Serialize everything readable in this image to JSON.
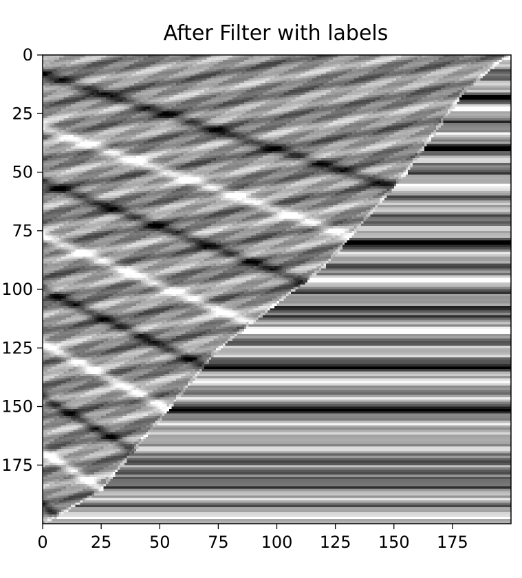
{
  "chart_data": {
    "type": "heatmap",
    "title": "After Filter with labels",
    "xlabel": "",
    "ylabel": "",
    "colormap": "gray",
    "shape": [
      200,
      200
    ],
    "xlim": [
      0,
      200
    ],
    "ylim": [
      200,
      0
    ],
    "x_ticks": [
      "0",
      "25",
      "50",
      "75",
      "100",
      "125",
      "150",
      "175"
    ],
    "y_ticks": [
      "0",
      "25",
      "50",
      "75",
      "100",
      "125",
      "150",
      "175"
    ],
    "y_tick_labels_visible": [
      "0",
      "25",
      "50",
      "75",
      "100",
      "125",
      "150",
      "175"
    ],
    "boundary_line": [
      [
        198,
        0
      ],
      [
        180,
        15
      ],
      [
        155,
        50
      ],
      [
        120,
        90
      ],
      [
        75,
        125
      ],
      [
        25,
        185
      ],
      [
        0,
        200
      ]
    ],
    "reflector_rows": [
      0,
      18,
      22,
      40,
      57,
      80,
      96,
      107,
      118,
      133,
      140,
      150,
      162,
      178,
      195
    ],
    "reflector_slopes": [
      0.32,
      0.35,
      0.38,
      0.42,
      0.47,
      0.52,
      0.58,
      0.64,
      0.72
    ],
    "grid": false,
    "legend": "none"
  }
}
